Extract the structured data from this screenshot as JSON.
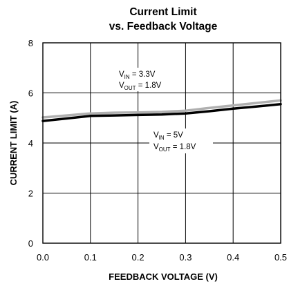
{
  "chart_data": {
    "type": "line",
    "title": "Current Limit",
    "subtitle": "vs. Feedback Voltage",
    "xlabel": "FEEDBACK VOLTAGE (V)",
    "ylabel": "CURRENT LIMIT (A)",
    "xlim": [
      0.0,
      0.5
    ],
    "ylim": [
      0,
      8
    ],
    "x_ticks": [
      "0.0",
      "0.1",
      "0.2",
      "0.3",
      "0.4",
      "0.5"
    ],
    "y_ticks": [
      "0",
      "2",
      "4",
      "6",
      "8"
    ],
    "grid": true,
    "series": [
      {
        "color": "#b0b0b0",
        "x": [
          0.0,
          0.05,
          0.1,
          0.15,
          0.2,
          0.25,
          0.3,
          0.35,
          0.4,
          0.45,
          0.5
        ],
        "y": [
          5.02,
          5.1,
          5.18,
          5.21,
          5.22,
          5.24,
          5.29,
          5.4,
          5.5,
          5.6,
          5.7
        ]
      },
      {
        "color": "#000000",
        "x": [
          0.0,
          0.05,
          0.1,
          0.15,
          0.2,
          0.25,
          0.3,
          0.35,
          0.4,
          0.45,
          0.5
        ],
        "y": [
          4.88,
          4.98,
          5.08,
          5.1,
          5.12,
          5.14,
          5.18,
          5.27,
          5.37,
          5.46,
          5.55
        ]
      }
    ],
    "annotations": [
      {
        "line1": {
          "main": "V",
          "sub": "IN",
          "rest": " = 3.3V"
        },
        "line2": {
          "main": "V",
          "sub": "OUT",
          "rest": " = 1.8V"
        }
      },
      {
        "line1": {
          "main": "V",
          "sub": "IN",
          "rest": " = 5V"
        },
        "line2": {
          "main": "V",
          "sub": "OUT",
          "rest": " = 1.8V"
        }
      }
    ]
  }
}
